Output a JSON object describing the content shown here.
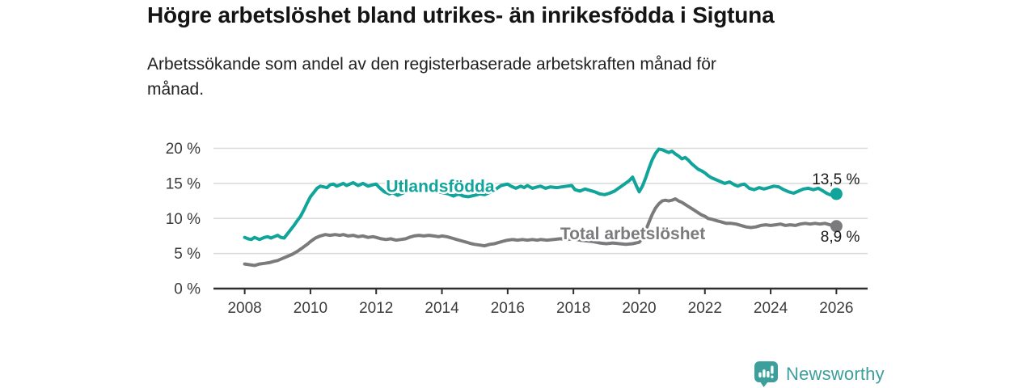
{
  "header": {
    "title": "Högre arbetslöshet bland utrikes- än inrikesfödda i Sigtuna",
    "subtitle_lines": [
      "Arbetssökande som andel av den registerbaserade arbetskraften månad för",
      "månad."
    ]
  },
  "footer": {
    "brand": "Newsworthy",
    "logo_icon": "bar-chart-speech-bubble-icon"
  },
  "colors": {
    "foreign_born_line": "#10a49a",
    "total_line": "#7b7b7e",
    "grid": "#dadada",
    "axis": "#2e2e2e",
    "tick_text": "#3b3b3b",
    "value_label_text": "#1a1a1a",
    "brand_teal": "#3d9f9b"
  },
  "chart_data": {
    "type": "line",
    "title": "Högre arbetslöshet bland utrikes- än inrikesfödda i Sigtuna",
    "xlabel": "",
    "ylabel": "",
    "grid": "horizontal",
    "legend_position": "inline-labels",
    "xlim": [
      2007.05,
      2026.95
    ],
    "ylim": [
      0,
      20
    ],
    "y_ticks": [
      {
        "value": 0,
        "label": "0 %"
      },
      {
        "value": 5,
        "label": "5 %"
      },
      {
        "value": 10,
        "label": "10 %"
      },
      {
        "value": 15,
        "label": "15 %"
      },
      {
        "value": 20,
        "label": "20 %"
      }
    ],
    "x_ticks": [
      {
        "value": 2008,
        "label": "2008"
      },
      {
        "value": 2010,
        "label": "2010"
      },
      {
        "value": 2012,
        "label": "2012"
      },
      {
        "value": 2014,
        "label": "2014"
      },
      {
        "value": 2016,
        "label": "2016"
      },
      {
        "value": 2018,
        "label": "2018"
      },
      {
        "value": 2020,
        "label": "2020"
      },
      {
        "value": 2022,
        "label": "2022"
      },
      {
        "value": 2024,
        "label": "2024"
      },
      {
        "value": 2026,
        "label": "2026"
      }
    ],
    "series": [
      {
        "id": "utlandsfodda",
        "name": "Utlandsfödda",
        "color": "#10a49a",
        "end_label": "13,5 %",
        "end_value": 13.5,
        "end_label_side": "above",
        "label_anchor": {
          "year": 2012.3,
          "value": 13.8
        },
        "points": [
          [
            2008,
            7.3
          ],
          [
            2008.1,
            7.1
          ],
          [
            2008.2,
            7
          ],
          [
            2008.3,
            7.3
          ],
          [
            2008.45,
            7
          ],
          [
            2008.6,
            7.3
          ],
          [
            2008.7,
            7.4
          ],
          [
            2008.8,
            7.2
          ],
          [
            2008.9,
            7.4
          ],
          [
            2009,
            7.6
          ],
          [
            2009.1,
            7.3
          ],
          [
            2009.2,
            7.2
          ],
          [
            2009.3,
            7.8
          ],
          [
            2009.4,
            8.4
          ],
          [
            2009.5,
            9
          ],
          [
            2009.6,
            9.7
          ],
          [
            2009.7,
            10.3
          ],
          [
            2009.8,
            11.2
          ],
          [
            2009.9,
            12.2
          ],
          [
            2010,
            13.1
          ],
          [
            2010.1,
            13.7
          ],
          [
            2010.2,
            14.3
          ],
          [
            2010.3,
            14.6
          ],
          [
            2010.4,
            14.5
          ],
          [
            2010.5,
            14.4
          ],
          [
            2010.6,
            14.8
          ],
          [
            2010.7,
            14.9
          ],
          [
            2010.8,
            14.6
          ],
          [
            2010.9,
            14.8
          ],
          [
            2011,
            15
          ],
          [
            2011.1,
            14.7
          ],
          [
            2011.2,
            14.9
          ],
          [
            2011.3,
            15.1
          ],
          [
            2011.45,
            14.7
          ],
          [
            2011.6,
            15
          ],
          [
            2011.75,
            14.6
          ],
          [
            2011.9,
            14.8
          ],
          [
            2012,
            14.9
          ],
          [
            2012.1,
            14.4
          ],
          [
            2012.25,
            13.8
          ],
          [
            2012.4,
            13.5
          ],
          [
            2012.5,
            13.7
          ],
          [
            2012.65,
            13.3
          ],
          [
            2012.8,
            13.6
          ],
          [
            2013,
            14
          ],
          [
            2013.25,
            14.3
          ],
          [
            2013.5,
            14.2
          ],
          [
            2013.75,
            13.9
          ],
          [
            2014,
            13.7
          ],
          [
            2014.2,
            13.5
          ],
          [
            2014.35,
            13.2
          ],
          [
            2014.5,
            13.5
          ],
          [
            2014.65,
            13.2
          ],
          [
            2014.8,
            13.1
          ],
          [
            2015,
            13.3
          ],
          [
            2015.15,
            13.5
          ],
          [
            2015.3,
            13.4
          ],
          [
            2015.5,
            13.8
          ],
          [
            2015.65,
            14.2
          ],
          [
            2015.8,
            14.7
          ],
          [
            2016,
            14.9
          ],
          [
            2016.1,
            14.6
          ],
          [
            2016.25,
            14.3
          ],
          [
            2016.4,
            14.6
          ],
          [
            2016.5,
            14.4
          ],
          [
            2016.6,
            14.7
          ],
          [
            2016.75,
            14.3
          ],
          [
            2016.9,
            14.5
          ],
          [
            2017,
            14.6
          ],
          [
            2017.15,
            14.3
          ],
          [
            2017.3,
            14.5
          ],
          [
            2017.5,
            14.4
          ],
          [
            2017.65,
            14.5
          ],
          [
            2017.8,
            14.6
          ],
          [
            2017.95,
            14.7
          ],
          [
            2018.05,
            14.1
          ],
          [
            2018.2,
            13.9
          ],
          [
            2018.35,
            14.2
          ],
          [
            2018.5,
            14
          ],
          [
            2018.65,
            13.8
          ],
          [
            2018.8,
            13.5
          ],
          [
            2018.95,
            13.4
          ],
          [
            2019.1,
            13.6
          ],
          [
            2019.25,
            13.9
          ],
          [
            2019.4,
            14.4
          ],
          [
            2019.55,
            14.9
          ],
          [
            2019.7,
            15.4
          ],
          [
            2019.8,
            15.9
          ],
          [
            2019.9,
            14.8
          ],
          [
            2020,
            13.8
          ],
          [
            2020.1,
            14.6
          ],
          [
            2020.2,
            15.8
          ],
          [
            2020.3,
            17.2
          ],
          [
            2020.4,
            18.4
          ],
          [
            2020.5,
            19.3
          ],
          [
            2020.6,
            19.9
          ],
          [
            2020.7,
            19.8
          ],
          [
            2020.8,
            19.6
          ],
          [
            2020.9,
            19.4
          ],
          [
            2021,
            19.6
          ],
          [
            2021.1,
            19.2
          ],
          [
            2021.2,
            18.9
          ],
          [
            2021.3,
            18.5
          ],
          [
            2021.4,
            18.7
          ],
          [
            2021.5,
            18.3
          ],
          [
            2021.6,
            17.8
          ],
          [
            2021.7,
            17.4
          ],
          [
            2021.8,
            17
          ],
          [
            2021.9,
            16.8
          ],
          [
            2022,
            16.5
          ],
          [
            2022.1,
            16.1
          ],
          [
            2022.2,
            15.8
          ],
          [
            2022.35,
            15.5
          ],
          [
            2022.5,
            15.2
          ],
          [
            2022.6,
            15
          ],
          [
            2022.75,
            15.2
          ],
          [
            2022.9,
            14.8
          ],
          [
            2023,
            14.6
          ],
          [
            2023.1,
            14.8
          ],
          [
            2023.2,
            14.9
          ],
          [
            2023.35,
            14.3
          ],
          [
            2023.5,
            14.1
          ],
          [
            2023.65,
            14.4
          ],
          [
            2023.8,
            14.2
          ],
          [
            2023.95,
            14.4
          ],
          [
            2024.1,
            14.6
          ],
          [
            2024.25,
            14.5
          ],
          [
            2024.4,
            14.1
          ],
          [
            2024.55,
            13.8
          ],
          [
            2024.7,
            13.6
          ],
          [
            2024.85,
            13.9
          ],
          [
            2025,
            14.2
          ],
          [
            2025.15,
            14.3
          ],
          [
            2025.3,
            14.1
          ],
          [
            2025.45,
            14.3
          ],
          [
            2025.6,
            13.9
          ],
          [
            2025.7,
            13.6
          ],
          [
            2025.8,
            13.4
          ],
          [
            2025.9,
            13.3
          ],
          [
            2026,
            13.5
          ]
        ]
      },
      {
        "id": "total-arbetsloshet",
        "name": "Total arbetslöshet",
        "color": "#7b7b7e",
        "end_label": "8,9 %",
        "end_value": 8.9,
        "end_label_side": "below",
        "label_anchor": {
          "year": 2017.6,
          "value": 7.05
        },
        "points": [
          [
            2008,
            3.5
          ],
          [
            2008.15,
            3.4
          ],
          [
            2008.3,
            3.3
          ],
          [
            2008.45,
            3.5
          ],
          [
            2008.6,
            3.6
          ],
          [
            2008.75,
            3.7
          ],
          [
            2008.9,
            3.9
          ],
          [
            2009,
            4
          ],
          [
            2009.15,
            4.3
          ],
          [
            2009.3,
            4.6
          ],
          [
            2009.45,
            4.9
          ],
          [
            2009.6,
            5.3
          ],
          [
            2009.75,
            5.8
          ],
          [
            2009.9,
            6.3
          ],
          [
            2010,
            6.7
          ],
          [
            2010.15,
            7.2
          ],
          [
            2010.3,
            7.5
          ],
          [
            2010.45,
            7.7
          ],
          [
            2010.6,
            7.6
          ],
          [
            2010.75,
            7.7
          ],
          [
            2010.9,
            7.6
          ],
          [
            2011,
            7.7
          ],
          [
            2011.15,
            7.5
          ],
          [
            2011.3,
            7.6
          ],
          [
            2011.45,
            7.4
          ],
          [
            2011.6,
            7.5
          ],
          [
            2011.75,
            7.3
          ],
          [
            2011.9,
            7.4
          ],
          [
            2012,
            7.3
          ],
          [
            2012.15,
            7.1
          ],
          [
            2012.3,
            7
          ],
          [
            2012.45,
            7.1
          ],
          [
            2012.6,
            6.9
          ],
          [
            2012.75,
            7
          ],
          [
            2012.9,
            7.1
          ],
          [
            2013,
            7.3
          ],
          [
            2013.15,
            7.5
          ],
          [
            2013.3,
            7.6
          ],
          [
            2013.45,
            7.5
          ],
          [
            2013.6,
            7.6
          ],
          [
            2013.75,
            7.5
          ],
          [
            2013.9,
            7.4
          ],
          [
            2014,
            7.5
          ],
          [
            2014.15,
            7.4
          ],
          [
            2014.3,
            7.2
          ],
          [
            2014.45,
            7
          ],
          [
            2014.6,
            6.8
          ],
          [
            2014.75,
            6.6
          ],
          [
            2014.9,
            6.4
          ],
          [
            2015,
            6.3
          ],
          [
            2015.15,
            6.2
          ],
          [
            2015.3,
            6.1
          ],
          [
            2015.45,
            6.3
          ],
          [
            2015.6,
            6.4
          ],
          [
            2015.75,
            6.6
          ],
          [
            2015.9,
            6.8
          ],
          [
            2016,
            6.9
          ],
          [
            2016.15,
            7
          ],
          [
            2016.3,
            6.9
          ],
          [
            2016.45,
            7
          ],
          [
            2016.6,
            6.9
          ],
          [
            2016.75,
            7
          ],
          [
            2016.9,
            6.9
          ],
          [
            2017,
            7
          ],
          [
            2017.2,
            6.9
          ],
          [
            2017.4,
            7
          ],
          [
            2017.6,
            7.1
          ],
          [
            2017.8,
            7
          ],
          [
            2018,
            7.1
          ],
          [
            2018.2,
            6.9
          ],
          [
            2018.4,
            6.8
          ],
          [
            2018.6,
            6.7
          ],
          [
            2018.8,
            6.5
          ],
          [
            2019,
            6.4
          ],
          [
            2019.2,
            6.5
          ],
          [
            2019.4,
            6.4
          ],
          [
            2019.6,
            6.3
          ],
          [
            2019.8,
            6.4
          ],
          [
            2020,
            6.6
          ],
          [
            2020.1,
            7.2
          ],
          [
            2020.2,
            8.3
          ],
          [
            2020.3,
            9.5
          ],
          [
            2020.4,
            10.6
          ],
          [
            2020.5,
            11.5
          ],
          [
            2020.6,
            12.1
          ],
          [
            2020.7,
            12.5
          ],
          [
            2020.8,
            12.6
          ],
          [
            2020.9,
            12.5
          ],
          [
            2021,
            12.6
          ],
          [
            2021.1,
            12.8
          ],
          [
            2021.2,
            12.5
          ],
          [
            2021.3,
            12.3
          ],
          [
            2021.4,
            12
          ],
          [
            2021.5,
            11.7
          ],
          [
            2021.6,
            11.4
          ],
          [
            2021.7,
            11.1
          ],
          [
            2021.8,
            10.8
          ],
          [
            2021.9,
            10.5
          ],
          [
            2022,
            10.3
          ],
          [
            2022.1,
            10
          ],
          [
            2022.2,
            9.9
          ],
          [
            2022.35,
            9.7
          ],
          [
            2022.5,
            9.5
          ],
          [
            2022.65,
            9.3
          ],
          [
            2022.8,
            9.3
          ],
          [
            2022.95,
            9.2
          ],
          [
            2023.1,
            9
          ],
          [
            2023.25,
            8.8
          ],
          [
            2023.4,
            8.7
          ],
          [
            2023.55,
            8.8
          ],
          [
            2023.7,
            9
          ],
          [
            2023.85,
            9.1
          ],
          [
            2024,
            9
          ],
          [
            2024.15,
            9.1
          ],
          [
            2024.3,
            9.2
          ],
          [
            2024.45,
            9
          ],
          [
            2024.6,
            9.1
          ],
          [
            2024.75,
            9
          ],
          [
            2024.9,
            9.2
          ],
          [
            2025.05,
            9.3
          ],
          [
            2025.2,
            9.2
          ],
          [
            2025.35,
            9.3
          ],
          [
            2025.5,
            9.2
          ],
          [
            2025.65,
            9.3
          ],
          [
            2025.8,
            9.1
          ],
          [
            2025.9,
            9
          ],
          [
            2026,
            8.9
          ]
        ]
      }
    ]
  }
}
